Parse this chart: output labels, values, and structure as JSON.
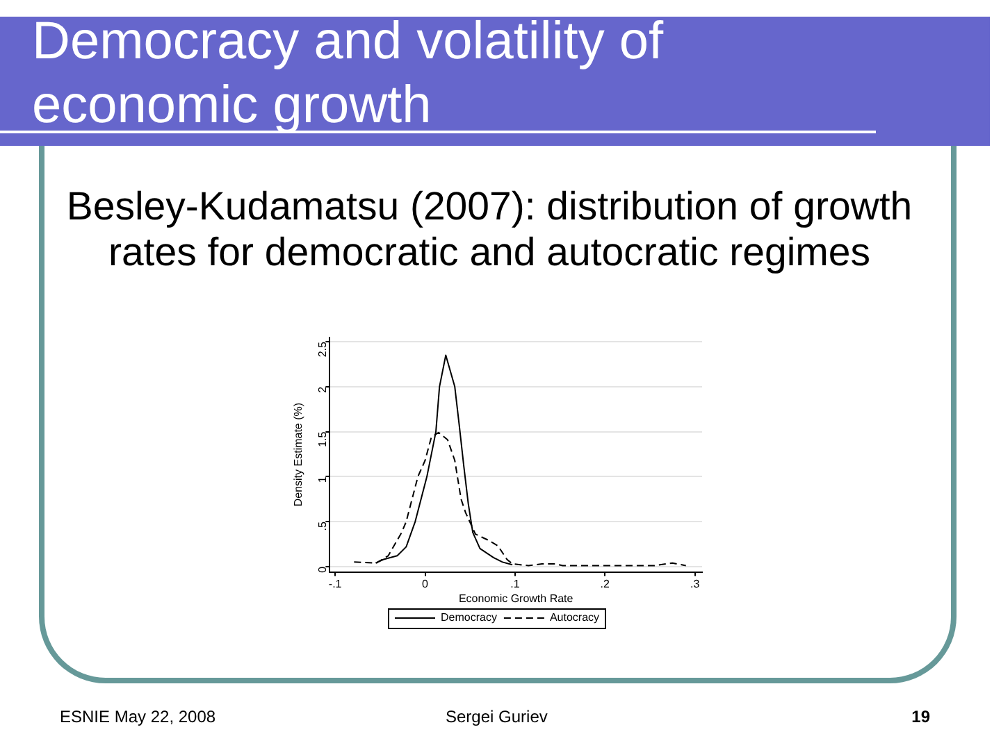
{
  "chart_data": {
    "type": "line",
    "title": "Democracy and volatility of economic growth",
    "subtitle": "Besley-Kudamatsu (2007): distribution of growth rates for democratic and autocratic regimes",
    "xlabel": "Economic Growth Rate",
    "ylabel": "Density Estimate (%)",
    "xlim": [
      -0.106,
      0.308
    ],
    "ylim": [
      -0.06,
      2.55
    ],
    "xticks": [
      {
        "value": -0.1,
        "label": "-.1"
      },
      0,
      {
        "value": 0.1,
        "label": ".1"
      },
      {
        "value": 0.2,
        "label": ".2"
      },
      {
        "value": 0.3,
        "label": ".3"
      }
    ],
    "yticks": [
      0,
      {
        "value": 0.5,
        "label": ".5"
      },
      1,
      {
        "value": 1.5,
        "label": "1.5"
      },
      2,
      {
        "value": 2.5,
        "label": "2.5"
      }
    ],
    "grid": "y",
    "legend": "bottom",
    "marker": "none",
    "series": [
      {
        "name": "Democracy",
        "color": "#000000",
        "line_style": "solid",
        "x": [
          -0.055,
          -0.046,
          -0.031,
          -0.021,
          -0.011,
          0.002,
          0.012,
          0.016,
          0.023,
          0.033,
          0.038,
          0.043,
          0.048,
          0.053,
          0.061,
          0.076,
          0.086,
          0.097
        ],
        "values": [
          0.04,
          0.08,
          0.12,
          0.22,
          0.5,
          1.0,
          1.5,
          2.0,
          2.35,
          2.0,
          1.57,
          1.12,
          0.7,
          0.38,
          0.2,
          0.1,
          0.05,
          0.02
        ]
      },
      {
        "name": "Autocracy",
        "color": "#000000",
        "line_style": "dashed",
        "x": [
          -0.079,
          -0.054,
          -0.041,
          -0.026,
          -0.021,
          -0.008,
          0,
          0.007,
          0.015,
          0.025,
          0.033,
          0.04,
          0.045,
          0.056,
          0.071,
          0.081,
          0.091,
          0.097,
          0.115,
          0.13,
          0.145,
          0.153,
          0.255,
          0.275,
          0.29
        ],
        "values": [
          0.05,
          0.04,
          0.12,
          0.38,
          0.5,
          1.0,
          1.18,
          1.44,
          1.49,
          1.41,
          1.18,
          0.75,
          0.6,
          0.36,
          0.29,
          0.23,
          0.08,
          0.03,
          0.01,
          0.03,
          0.03,
          0.01,
          0.01,
          0.04,
          0.01
        ]
      }
    ],
    "annotations": [
      "ESNIE May 22, 2008",
      "Sergei Guriev",
      "19"
    ]
  }
}
